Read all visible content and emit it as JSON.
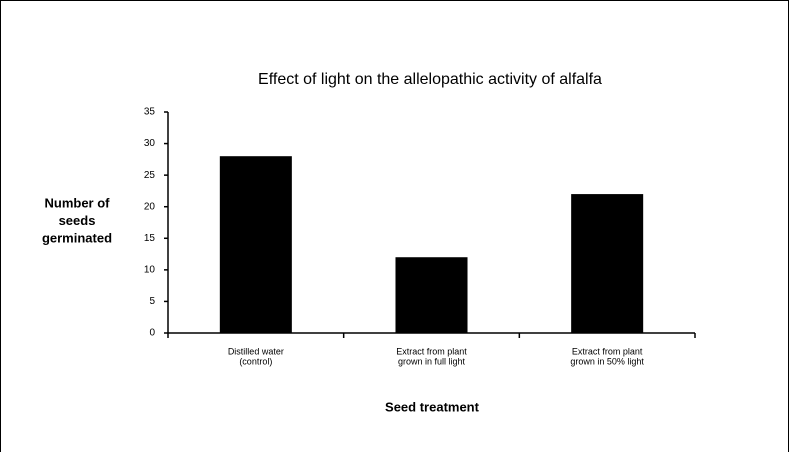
{
  "chart_data": {
    "type": "bar",
    "title": "Effect of light on the allelopathic activity of alfalfa",
    "xlabel": "Seed treatment",
    "ylabel": [
      "Number of",
      "seeds",
      "germinated"
    ],
    "categories": [
      [
        "Distilled water",
        "(control)"
      ],
      [
        "Extract from plant",
        "grown in full light"
      ],
      [
        "Extract from plant",
        "grown in 50% light"
      ]
    ],
    "values": [
      28,
      12,
      22
    ],
    "color": "#000000",
    "ylim": [
      0,
      35
    ],
    "yticks": [
      0,
      5,
      10,
      15,
      20,
      25,
      30,
      35
    ],
    "grid": false
  }
}
